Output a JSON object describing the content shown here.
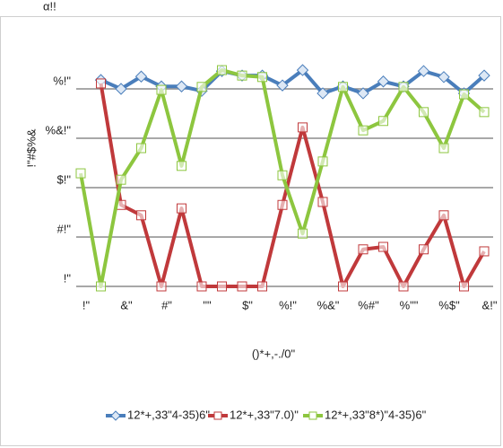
{
  "chart_data": {
    "type": "line",
    "title": "α!!",
    "x_label": "()*+,-./0\"",
    "y_label": "!\"#$%&",
    "categories": [
      "!\"",
      null,
      "&\"",
      null,
      "#\"",
      null,
      "\"\"",
      null,
      "$\"",
      null,
      "%!\"",
      null,
      "%&\"",
      null,
      "%#\"",
      null,
      "%\"\"",
      null,
      "%$\"",
      null,
      "&!\""
    ],
    "ylim": [
      0,
      4.5
    ],
    "yticks": [
      {
        "value": 0,
        "label": "!\""
      },
      {
        "value": 1,
        "label": "#!\""
      },
      {
        "value": 2,
        "label": "$!\""
      },
      {
        "value": 3,
        "label": "%&!\""
      },
      {
        "value": 4,
        "label": "%!\""
      }
    ],
    "grid": true,
    "legend": "bottom",
    "series": [
      {
        "name": "12*+,33\"4-35)6\"",
        "color": "#4a7ebb",
        "marker": "diamond",
        "values": [
          null,
          4.18,
          4.0,
          4.25,
          4.05,
          4.05,
          3.96,
          4.36,
          4.27,
          4.27,
          4.07,
          4.38,
          3.91,
          4.05,
          3.91,
          4.15,
          4.05,
          4.36,
          4.24,
          3.91,
          4.27
        ]
      },
      {
        "name": "12*+,33\"7.0)\"",
        "color": "#c0393b",
        "marker": "square",
        "values": [
          null,
          4.11,
          1.65,
          1.44,
          0,
          1.58,
          0,
          0,
          0,
          0,
          1.65,
          3.22,
          1.71,
          0,
          0.75,
          0.8,
          0,
          0.75,
          1.44,
          0,
          0.71
        ]
      },
      {
        "name": "12*+,33\"8*)\"4-35)6\"",
        "color": "#8dc63f",
        "marker": "square",
        "values": [
          2.29,
          0,
          2.16,
          2.8,
          3.98,
          2.44,
          4.04,
          4.38,
          4.27,
          4.24,
          2.25,
          1.07,
          2.53,
          4.04,
          3.16,
          3.35,
          4.04,
          3.53,
          2.8,
          3.89,
          3.53
        ]
      }
    ]
  }
}
